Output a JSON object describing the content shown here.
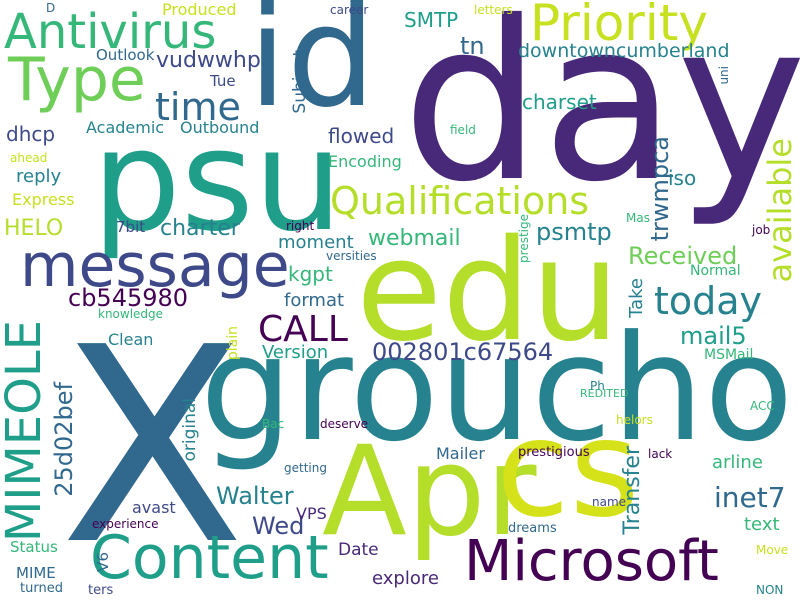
{
  "palette": {
    "background": "#ffffff",
    "dark_purple": "#440154",
    "indigo": "#482878",
    "blue_purple": "#3e4989",
    "slate_blue": "#31688e",
    "teal_blue": "#26828e",
    "teal": "#1f9e89",
    "green": "#35b779",
    "lime": "#6ece58",
    "yellow_green": "#b5de2b",
    "yellow": "#fde725"
  },
  "words": {
    "day": "day",
    "x": "X",
    "groucho": "groucho",
    "edu": "edu",
    "psu": "psu",
    "apr": "Apr",
    "cs": "cs",
    "id": "id",
    "content": "Content",
    "microsoft": "Microsoft",
    "message": "message",
    "priority": "Priority",
    "antivirus": "Antivirus",
    "type": "Type",
    "mimeole": "MIMEOLE",
    "qualifications": "Qualifications",
    "today": "today",
    "time": "time",
    "available": "available",
    "call": "CALL",
    "inet7": "inet7",
    "walter": "Walter",
    "id_002801c67564": "002801c67564",
    "cb545980": "cb545980",
    "wed": "Wed",
    "received": "Received",
    "mail5": "mail5",
    "transfer": "Transfer",
    "id_25d02bef": "25d02bef",
    "downtowncumberland": "downtowncumberland",
    "tn": "tn",
    "smtp": "SMTP",
    "vudwwhp": "vudwwhp",
    "charter": "charter",
    "psmtp": "psmtp",
    "webmail": "webmail",
    "trwmpca": "trwmpca",
    "helo": "HELO",
    "charset": "charset",
    "dhcp": "dhcp",
    "reply": "reply",
    "flowed": "flowed",
    "kgpt": "kgpt",
    "format": "format",
    "iso": "iso",
    "subject": "Subject",
    "version": "Version",
    "moment": "moment",
    "text": "text",
    "arline": "arline",
    "mailer": "Mailer",
    "date": "Date",
    "explore": "explore",
    "vps": "VPS",
    "original": "original",
    "take": "Take",
    "produced": "Produced",
    "outlook": "Outlook",
    "tue": "Tue",
    "academic": "Academic",
    "outbound": "Outbound",
    "encoding": "Encoding",
    "express": "Express",
    "bit7": "7bit",
    "clean": "Clean",
    "plain": "plain",
    "normal": "Normal",
    "msmail": "MSMail",
    "avast": "avast",
    "status": "Status",
    "mime": "MIME",
    "v6": "V6",
    "dreams": "dreams",
    "move": "Move",
    "non": "NON",
    "turned": "turned",
    "ters": "ters",
    "experience": "experience",
    "name": "name",
    "prestigious": "prestigious",
    "lack": "lack",
    "getting": "getting",
    "deserve": "deserve",
    "bac": "Bac",
    "helors": "helors",
    "acc": "ACC",
    "redited": "REDITED",
    "ph": "Ph",
    "knowledge": "knowledge",
    "versities": "versities",
    "right": "right",
    "prestige": "prestige",
    "job": "job",
    "mas": "Mas",
    "field": "field",
    "ahead": "ahead",
    "career": "career",
    "letters": "letters",
    "uni": "uni",
    "d": "D"
  }
}
